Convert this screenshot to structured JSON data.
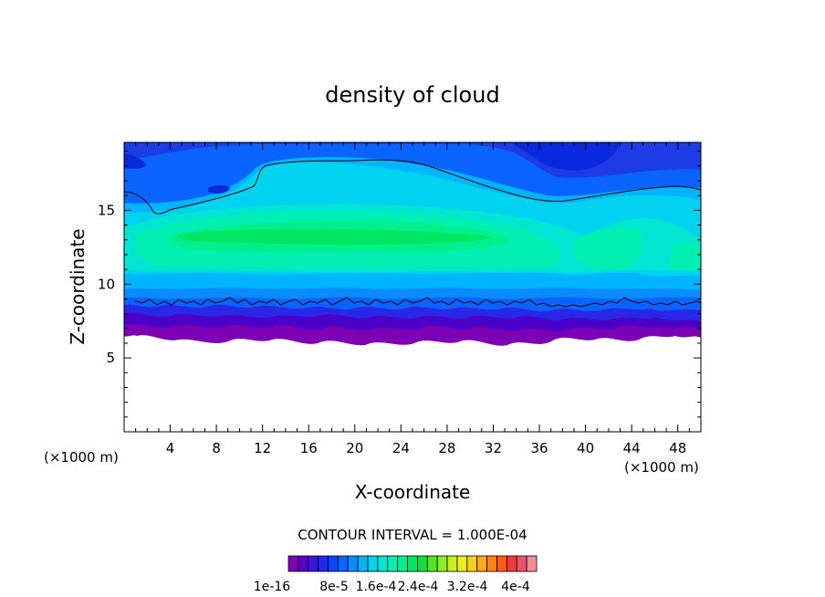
{
  "chart_data": {
    "type": "heatmap",
    "title": "density of cloud",
    "xlabel": "X-coordinate",
    "ylabel": "Z-coordinate",
    "x_unit": "(×1000 m)",
    "y_unit": "(×1000 m)",
    "xlim": [
      0,
      50
    ],
    "ylim": [
      0,
      19.6
    ],
    "x_ticks": [
      4,
      8,
      12,
      16,
      20,
      24,
      28,
      32,
      36,
      40,
      44,
      48
    ],
    "y_ticks": [
      5,
      10,
      15
    ],
    "contour_interval_text": "CONTOUR INTERVAL = 1.000E-04",
    "colorbar_labels": [
      "1e-16",
      "8e-5",
      "1.6e-4",
      "2.4e-4",
      "3.2e-4",
      "4e-4"
    ],
    "colorbar_colors": [
      "#7c00b4",
      "#5a00c8",
      "#3c14dc",
      "#1e28f0",
      "#0a46f5",
      "#0a64ff",
      "#0a8cff",
      "#00b4ff",
      "#00d2f0",
      "#00e6d2",
      "#00f0b4",
      "#00f08c",
      "#00e664",
      "#14dc3c",
      "#50e628",
      "#8cf01e",
      "#c8f01e",
      "#ecec1e",
      "#fad21e",
      "#ffaa1e",
      "#ff8214",
      "#ff5a14",
      "#f03c3c",
      "#f0506e",
      "#f08c96"
    ],
    "regions": {
      "cloud_base_km": 6.5,
      "cloud_top_km": 19.6,
      "max_density_band_km": [
        12.5,
        14.5
      ],
      "contour_line_1_km": [
        16.9,
        15.1,
        18.4,
        18.9,
        17.5,
        16.0,
        16.9
      ],
      "contour_line_2_km": 9.0
    }
  }
}
